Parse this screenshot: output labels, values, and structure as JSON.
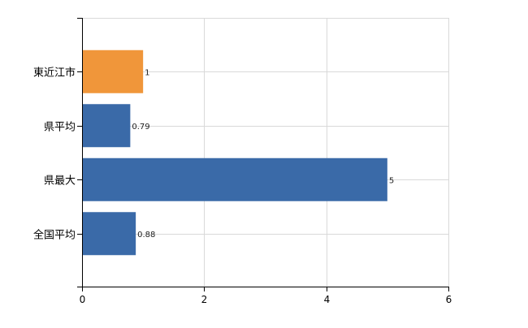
{
  "chart_data": {
    "type": "bar",
    "orientation": "horizontal",
    "title": "",
    "xlabel": "",
    "ylabel": "",
    "categories": [
      "東近江市",
      "県平均",
      "県最大",
      "全国平均"
    ],
    "values": [
      1,
      0.79,
      5,
      0.88
    ],
    "value_labels": [
      "1",
      "0.79",
      "5",
      "0.88"
    ],
    "xlim": [
      0,
      6
    ],
    "xticks": [
      0,
      2,
      4,
      6
    ],
    "xtick_labels": [
      "0",
      "2",
      "4",
      "6"
    ],
    "grid": true,
    "legend": "none",
    "colors": {
      "highlight": "#f0963a",
      "default": "#3a6aa8",
      "grid": "#d9d9d9",
      "axis": "#000000"
    },
    "highlight_index": 0
  }
}
